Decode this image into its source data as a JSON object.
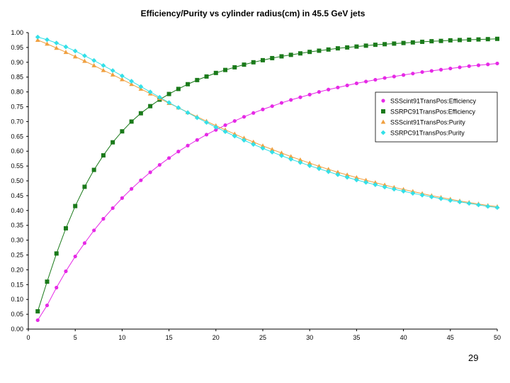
{
  "page_number": "29",
  "chart_data": {
    "type": "line",
    "title": "Efficiency/Purity vs cylinder radius(cm) in 45.5 GeV jets",
    "xlabel": "",
    "ylabel": "",
    "xlim": [
      0,
      50
    ],
    "ylim": [
      0,
      1.0
    ],
    "x_ticks": [
      "0",
      "5",
      "10",
      "15",
      "20",
      "25",
      "30",
      "35",
      "40",
      "45",
      "50"
    ],
    "y_ticks": [
      "0.00",
      "0.05",
      "0.10",
      "0.15",
      "0.20",
      "0.25",
      "0.30",
      "0.35",
      "0.40",
      "0.45",
      "0.50",
      "0.55",
      "0.60",
      "0.65",
      "0.70",
      "0.75",
      "0.80",
      "0.85",
      "0.90",
      "0.95",
      "1.00"
    ],
    "grid": false,
    "legend_position": "right",
    "x": [
      1,
      2,
      3,
      4,
      5,
      6,
      7,
      8,
      9,
      10,
      11,
      12,
      13,
      14,
      15,
      16,
      17,
      18,
      19,
      20,
      21,
      22,
      23,
      24,
      25,
      26,
      27,
      28,
      29,
      30,
      31,
      32,
      33,
      34,
      35,
      36,
      37,
      38,
      39,
      40,
      41,
      42,
      43,
      44,
      45,
      46,
      47,
      48,
      49,
      50
    ],
    "series": [
      {
        "name": "SSScint91TransPos:Efficiency",
        "color": "#e629e6",
        "marker": "circle",
        "values": [
          0.03,
          0.08,
          0.14,
          0.195,
          0.245,
          0.29,
          0.333,
          0.372,
          0.408,
          0.442,
          0.473,
          0.502,
          0.529,
          0.554,
          0.577,
          0.599,
          0.619,
          0.638,
          0.656,
          0.672,
          0.688,
          0.702,
          0.716,
          0.729,
          0.741,
          0.752,
          0.763,
          0.773,
          0.782,
          0.791,
          0.8,
          0.808,
          0.815,
          0.822,
          0.829,
          0.835,
          0.841,
          0.847,
          0.852,
          0.857,
          0.862,
          0.867,
          0.871,
          0.875,
          0.879,
          0.883,
          0.887,
          0.89,
          0.893,
          0.896
        ]
      },
      {
        "name": "SSRPC91TransPos:Efficiency",
        "color": "#1a7a1a",
        "marker": "square",
        "values": [
          0.06,
          0.16,
          0.255,
          0.34,
          0.415,
          0.48,
          0.537,
          0.586,
          0.63,
          0.667,
          0.7,
          0.728,
          0.752,
          0.774,
          0.793,
          0.81,
          0.826,
          0.84,
          0.852,
          0.864,
          0.874,
          0.883,
          0.892,
          0.9,
          0.907,
          0.914,
          0.92,
          0.925,
          0.93,
          0.935,
          0.939,
          0.943,
          0.947,
          0.95,
          0.953,
          0.956,
          0.959,
          0.961,
          0.963,
          0.965,
          0.967,
          0.969,
          0.971,
          0.972,
          0.974,
          0.975,
          0.976,
          0.977,
          0.978,
          0.979
        ]
      },
      {
        "name": "SSScint91TransPos:Purity",
        "color": "#f0a040",
        "marker": "triangle",
        "values": [
          0.975,
          0.962,
          0.948,
          0.934,
          0.919,
          0.904,
          0.889,
          0.873,
          0.858,
          0.842,
          0.826,
          0.81,
          0.794,
          0.778,
          0.762,
          0.747,
          0.731,
          0.716,
          0.701,
          0.686,
          0.672,
          0.658,
          0.644,
          0.631,
          0.618,
          0.606,
          0.594,
          0.582,
          0.571,
          0.56,
          0.549,
          0.539,
          0.529,
          0.52,
          0.511,
          0.502,
          0.494,
          0.486,
          0.478,
          0.471,
          0.464,
          0.457,
          0.45,
          0.444,
          0.438,
          0.432,
          0.427,
          0.422,
          0.417,
          0.413
        ]
      },
      {
        "name": "SSRPC91TransPos:Purity",
        "color": "#33e0e8",
        "marker": "diamond",
        "values": [
          0.985,
          0.976,
          0.965,
          0.952,
          0.938,
          0.922,
          0.906,
          0.889,
          0.872,
          0.854,
          0.836,
          0.818,
          0.8,
          0.782,
          0.764,
          0.747,
          0.73,
          0.713,
          0.697,
          0.681,
          0.666,
          0.651,
          0.637,
          0.623,
          0.61,
          0.597,
          0.585,
          0.573,
          0.562,
          0.551,
          0.541,
          0.531,
          0.521,
          0.512,
          0.503,
          0.495,
          0.487,
          0.479,
          0.472,
          0.465,
          0.458,
          0.452,
          0.446,
          0.44,
          0.434,
          0.429,
          0.424,
          0.419,
          0.414,
          0.41
        ]
      }
    ]
  }
}
